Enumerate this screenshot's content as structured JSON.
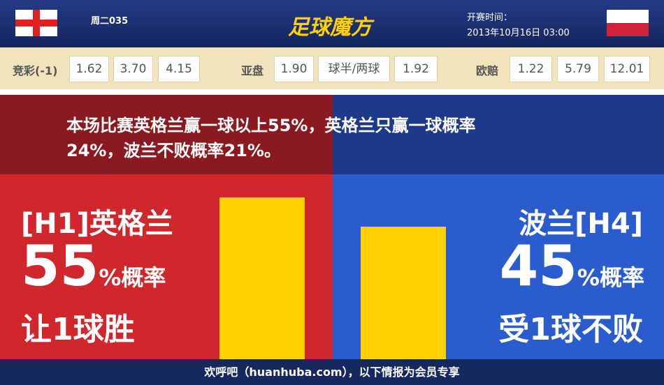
{
  "header": {
    "match_code": "周二035",
    "logo": "足球魔方",
    "kickoff_label": "开赛时间：",
    "kickoff_time": "2013年10月16日 03:00"
  },
  "odds": {
    "jingcai": {
      "label": "竞彩(-1)",
      "values": [
        "1.62",
        "3.70",
        "4.15"
      ]
    },
    "yapan": {
      "label": "亚盘",
      "values": [
        "1.90",
        "球半/两球",
        "1.92"
      ]
    },
    "oupei": {
      "label": "欧赔",
      "values": [
        "1.22",
        "5.79",
        "12.01"
      ]
    }
  },
  "summary": [
    "本场比赛英格兰赢一球以上55%，英格兰只赢一球概率",
    "24%，波兰不败概率21%。"
  ],
  "home": {
    "team": "[H1]英格兰",
    "probability": 55,
    "unit": "%概率",
    "outcome": "让1球胜"
  },
  "away": {
    "team": "波兰[H4]",
    "probability": 45,
    "unit": "%概率",
    "outcome": "受1球不败"
  },
  "footer": "欢呼吧（huanhuba.com），以下情报为会员专享"
}
